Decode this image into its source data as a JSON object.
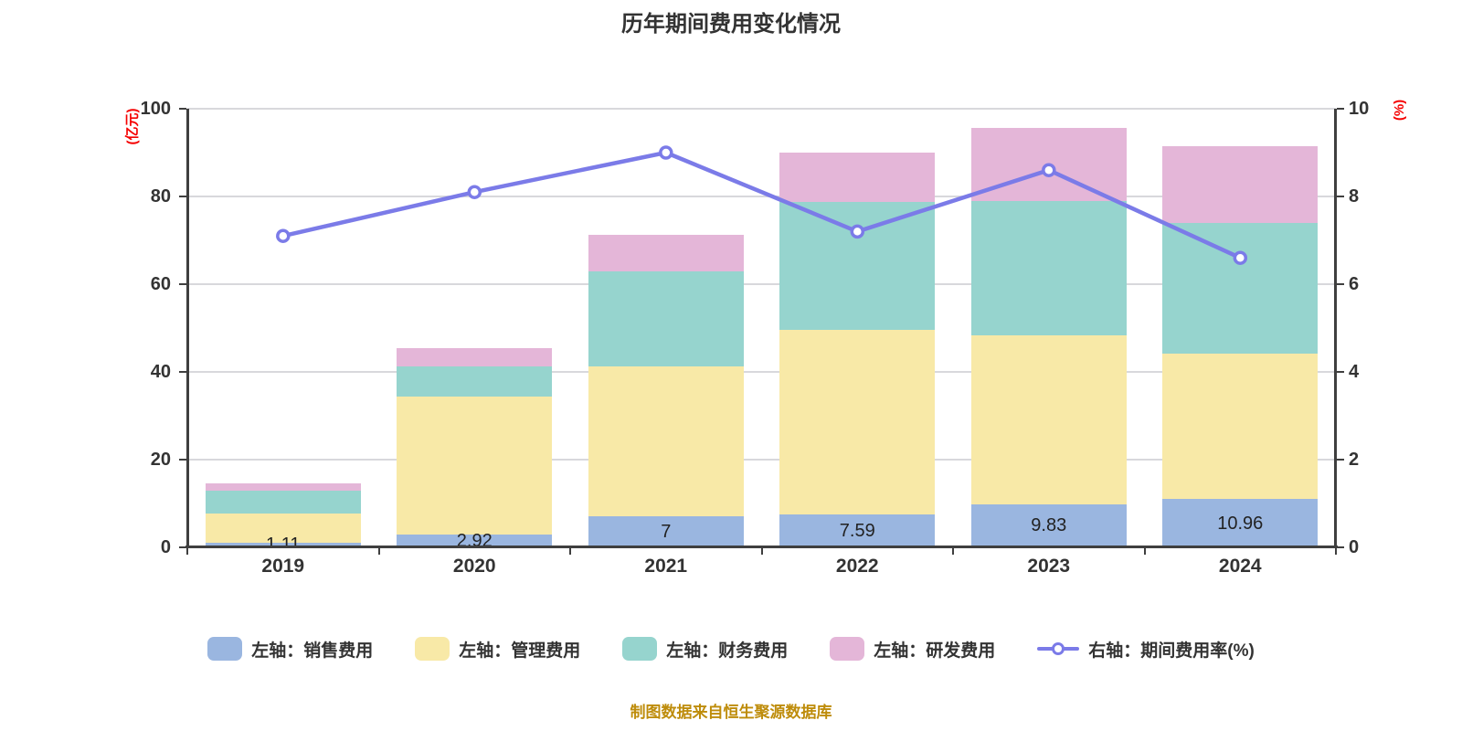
{
  "title": "历年期间费用变化情况",
  "footer_note": "制图数据来自恒生聚源数据库",
  "colors": {
    "axis_unit_label": "#f50000",
    "footer_text": "#be8c0a",
    "axis_line": "#3f3f3f",
    "gridline": "#d8d8dc",
    "tick_text": "#333333"
  },
  "left_axis": {
    "unit_label": "(亿元)",
    "ticks": [
      0,
      20,
      40,
      60,
      80,
      100
    ],
    "max": 100
  },
  "right_axis": {
    "unit_label": "(%)",
    "ticks": [
      0,
      2,
      4,
      6,
      8,
      10
    ],
    "max": 10
  },
  "chart_data": {
    "type": "stacked-bar+line",
    "categories": [
      "2019",
      "2020",
      "2021",
      "2022",
      "2023",
      "2024"
    ],
    "legend_position": "bottom",
    "grid": true,
    "left_ylim": [
      0,
      100
    ],
    "right_ylim": [
      0,
      10
    ],
    "series": [
      {
        "name": "左轴：销售费用",
        "short": "sales-expense",
        "type": "bar",
        "axis": "left",
        "color": "#9ab6e0",
        "values": [
          1.11,
          2.92,
          7,
          7.59,
          9.83,
          10.96
        ],
        "data_labels": [
          "1.11",
          "2.92",
          "7",
          "7.59",
          "9.83",
          "10.96"
        ]
      },
      {
        "name": "左轴：管理费用",
        "short": "admin-expense",
        "type": "bar",
        "axis": "left",
        "color": "#f8e9a7",
        "values": [
          6.7,
          31.5,
          34.3,
          42.0,
          38.6,
          33.2
        ]
      },
      {
        "name": "左轴：财务费用",
        "short": "finance-expense",
        "type": "bar",
        "axis": "left",
        "color": "#96d4ce",
        "values": [
          5.1,
          6.9,
          21.7,
          29.1,
          30.6,
          29.8
        ]
      },
      {
        "name": "左轴：研发费用",
        "short": "rd-expense",
        "type": "bar",
        "axis": "left",
        "color": "#e4b6d8",
        "values": [
          1.7,
          4.0,
          8.3,
          11.3,
          16.5,
          17.5
        ]
      },
      {
        "name": "右轴：期间费用率(%)",
        "short": "expense-ratio",
        "type": "line",
        "axis": "right",
        "color": "#7b7be8",
        "values": [
          7.1,
          8.1,
          9.0,
          7.2,
          8.6,
          6.6
        ]
      }
    ]
  }
}
